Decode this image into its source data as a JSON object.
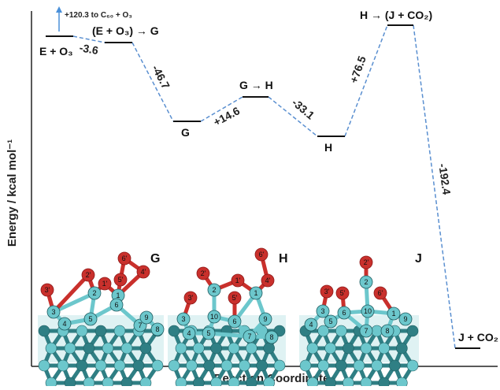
{
  "axes": {
    "y_label": "Energy / kcal mol⁻¹",
    "x_label": "Reaction Coordinate"
  },
  "note": "+120.3 to C₆₀ + O₃",
  "states": [
    {
      "id": "E_O3",
      "label": "E + O₃"
    },
    {
      "id": "TS_EG",
      "label": "(E + O₃) → G"
    },
    {
      "id": "G",
      "label": "G"
    },
    {
      "id": "TS_GH",
      "label": "G → H"
    },
    {
      "id": "H",
      "label": "H"
    },
    {
      "id": "TS_HJ",
      "label": "H → (J + CO₂)"
    },
    {
      "id": "J_CO2",
      "label": "J + CO₂"
    }
  ],
  "steps": [
    {
      "label": "-3.6"
    },
    {
      "label": "-46.7"
    },
    {
      "label": "+14.6"
    },
    {
      "label": "-33.1"
    },
    {
      "label": "+76.5"
    },
    {
      "label": "-192.4"
    }
  ],
  "structures": [
    {
      "label": "G",
      "atoms": [
        "1",
        "1'",
        "2",
        "2'",
        "3",
        "3'",
        "4",
        "4'",
        "5",
        "5'",
        "6",
        "6'",
        "7",
        "8",
        "9"
      ]
    },
    {
      "label": "H",
      "atoms": [
        "1",
        "1'",
        "2",
        "2'",
        "3",
        "3'",
        "4",
        "4'",
        "5",
        "5'",
        "6",
        "6'",
        "7",
        "8",
        "9",
        "10"
      ]
    },
    {
      "label": "J",
      "atoms": [
        "1",
        "2",
        "2'",
        "3",
        "3'",
        "4",
        "5",
        "5'",
        "6",
        "6'",
        "7",
        "8",
        "9",
        "10"
      ]
    }
  ],
  "colors": {
    "level_line": "#111111",
    "connector": "#5a8fd0",
    "arrow": "#4a90d9",
    "carbon": "#6cc7cc",
    "carbon_dark": "#2f7f84",
    "oxygen": "#c9302c",
    "oxygen_dark": "#8e1a1a"
  }
}
